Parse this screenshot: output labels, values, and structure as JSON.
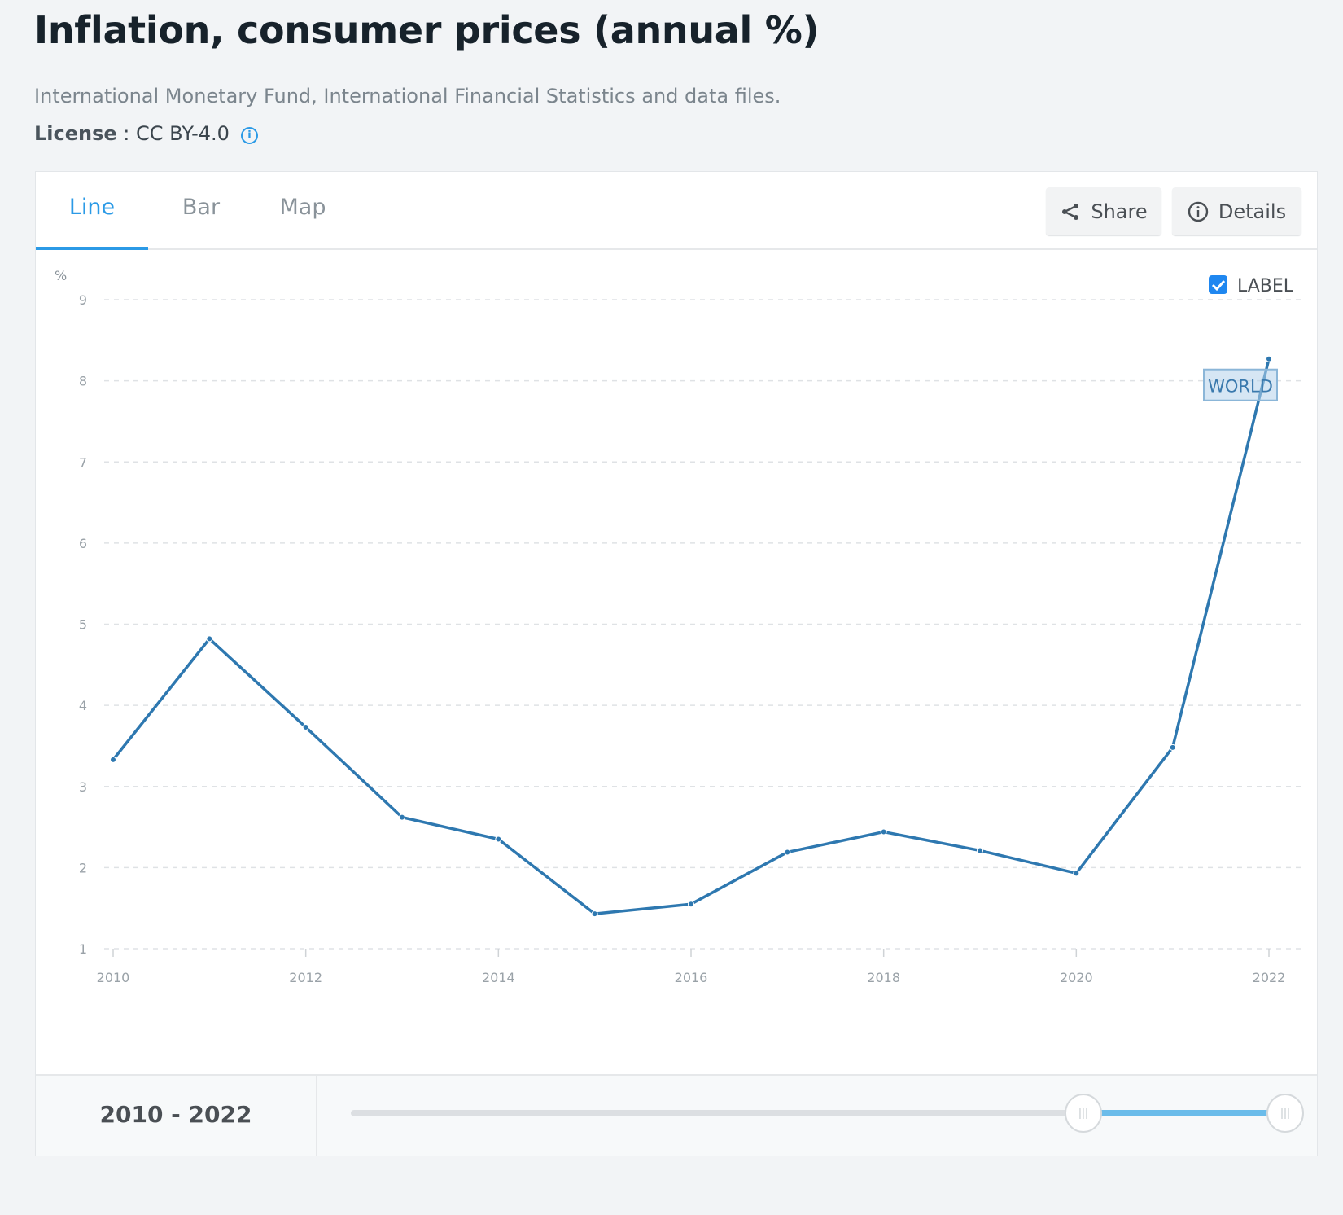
{
  "header": {
    "title": "Inflation, consumer prices (annual %)",
    "source": "International Monetary Fund, International Financial Statistics and data files.",
    "license_label": "License",
    "license_sep": " : ",
    "license_value": "CC BY-4.0",
    "info_icon": "i"
  },
  "tabs": [
    {
      "label": "Line",
      "active": true
    },
    {
      "label": "Bar",
      "active": false
    },
    {
      "label": "Map",
      "active": false
    }
  ],
  "buttons": {
    "share": "Share",
    "details": "Details"
  },
  "label_toggle": {
    "label": "LABEL",
    "checked": true
  },
  "range": {
    "text": "2010 - 2022",
    "slider_start_fraction": 0.788,
    "slider_end_fraction": 1.0
  },
  "colors": {
    "accent": "#2b9ae6",
    "line": "#2e78b0",
    "slider": "#6bbcea"
  },
  "chart_data": {
    "type": "line",
    "title": "Inflation, consumer prices (annual %)",
    "ylabel": "%",
    "xlabel": "",
    "ylim": [
      1,
      9
    ],
    "yticks": [
      1,
      2,
      3,
      4,
      5,
      6,
      7,
      8,
      9
    ],
    "xticks": [
      2010,
      2012,
      2014,
      2016,
      2018,
      2020,
      2022
    ],
    "grid": true,
    "series": [
      {
        "name": "WORLD",
        "x": [
          2010,
          2011,
          2012,
          2013,
          2014,
          2015,
          2016,
          2017,
          2018,
          2019,
          2020,
          2021,
          2022
        ],
        "values": [
          3.33,
          4.82,
          3.73,
          2.62,
          2.35,
          1.43,
          1.55,
          2.19,
          2.44,
          2.21,
          1.93,
          3.48,
          8.27
        ]
      }
    ]
  }
}
